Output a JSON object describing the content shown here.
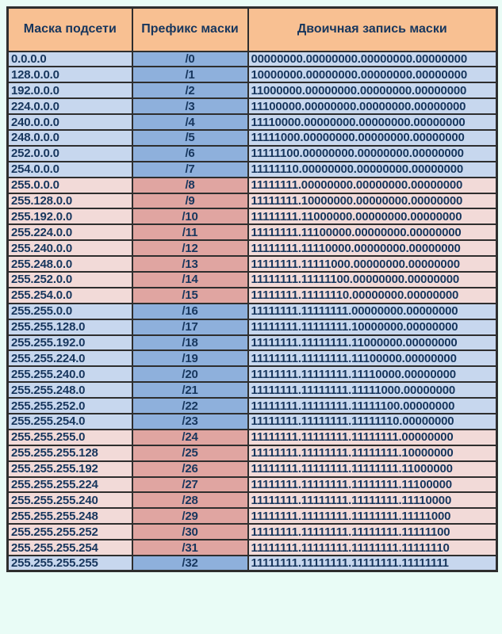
{
  "colors": {
    "page_bg": "#E9FCF6",
    "header_bg": "#F8C092",
    "blue_light": "#C7D7EE",
    "blue_dark": "#8EB0DC",
    "pink_light": "#F2DAD8",
    "pink_dark": "#E0A5A1",
    "border": "#2E2E2E",
    "text": "#17365D"
  },
  "chart_data": {
    "type": "table",
    "title": "",
    "columns": [
      "Маска подсети",
      "Префикс маски",
      "Двоичная запись маски"
    ],
    "rows": [
      [
        "0.0.0.0",
        "/0",
        "00000000.00000000.00000000.00000000"
      ],
      [
        "128.0.0.0",
        "/1",
        "10000000.00000000.00000000.00000000"
      ],
      [
        "192.0.0.0",
        "/2",
        "11000000.00000000.00000000.00000000"
      ],
      [
        "224.0.0.0",
        "/3",
        "11100000.00000000.00000000.00000000"
      ],
      [
        "240.0.0.0",
        "/4",
        "11110000.00000000.00000000.00000000"
      ],
      [
        "248.0.0.0",
        "/5",
        "11111000.00000000.00000000.00000000"
      ],
      [
        "252.0.0.0",
        "/6",
        "11111100.00000000.00000000.00000000"
      ],
      [
        "254.0.0.0",
        "/7",
        "11111110.00000000.00000000.00000000"
      ],
      [
        "255.0.0.0",
        "/8",
        "11111111.00000000.00000000.00000000"
      ],
      [
        "255.128.0.0",
        "/9",
        "11111111.10000000.00000000.00000000"
      ],
      [
        "255.192.0.0",
        "/10",
        "11111111.11000000.00000000.00000000"
      ],
      [
        "255.224.0.0",
        "/11",
        "11111111.11100000.00000000.00000000"
      ],
      [
        "255.240.0.0",
        "/12",
        "11111111.11110000.00000000.00000000"
      ],
      [
        "255.248.0.0",
        "/13",
        "11111111.11111000.00000000.00000000"
      ],
      [
        "255.252.0.0",
        "/14",
        "11111111.11111100.00000000.00000000"
      ],
      [
        "255.254.0.0",
        "/15",
        "11111111.11111110.00000000.00000000"
      ],
      [
        "255.255.0.0",
        "/16",
        "11111111.11111111.00000000.00000000"
      ],
      [
        "255.255.128.0",
        "/17",
        "11111111.11111111.10000000.00000000"
      ],
      [
        "255.255.192.0",
        "/18",
        "11111111.11111111.11000000.00000000"
      ],
      [
        "255.255.224.0",
        "/19",
        "11111111.11111111.11100000.00000000"
      ],
      [
        "255.255.240.0",
        "/20",
        "11111111.11111111.11110000.00000000"
      ],
      [
        "255.255.248.0",
        "/21",
        "11111111.11111111.11111000.00000000"
      ],
      [
        "255.255.252.0",
        "/22",
        "11111111.11111111.11111100.00000000"
      ],
      [
        "255.255.254.0",
        "/23",
        "11111111.11111111.11111110.00000000"
      ],
      [
        "255.255.255.0",
        "/24",
        "11111111.11111111.11111111.00000000"
      ],
      [
        "255.255.255.128",
        "/25",
        "11111111.11111111.11111111.10000000"
      ],
      [
        "255.255.255.192",
        "/26",
        "11111111.11111111.11111111.11000000"
      ],
      [
        "255.255.255.224",
        "/27",
        "11111111.11111111.11111111.11100000"
      ],
      [
        "255.255.255.240",
        "/28",
        "11111111.11111111.11111111.11110000"
      ],
      [
        "255.255.255.248",
        "/29",
        "11111111.11111111.11111111.11111000"
      ],
      [
        "255.255.255.252",
        "/30",
        "11111111.11111111.11111111.11111100"
      ],
      [
        "255.255.255.254",
        "/31",
        "11111111.11111111.11111111.11111110"
      ],
      [
        "255.255.255.255",
        "/32",
        "11111111.11111111.11111111.11111111"
      ]
    ]
  }
}
